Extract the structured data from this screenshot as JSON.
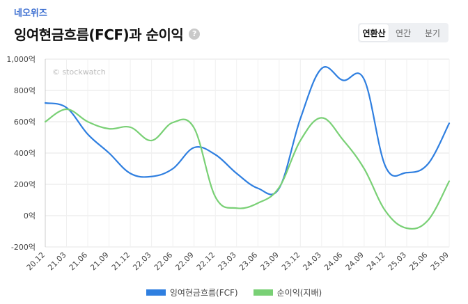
{
  "header": {
    "company": "네오위즈",
    "title": "잉여현금흐름(FCF)과 순이익",
    "help": "?"
  },
  "period_tabs": [
    {
      "label": "연환산",
      "active": true
    },
    {
      "label": "연간",
      "active": false
    },
    {
      "label": "분기",
      "active": false
    }
  ],
  "watermark": "© stockwatch",
  "chart_data": {
    "type": "line",
    "categories": [
      "20.12",
      "21.03",
      "21.06",
      "21.09",
      "21.12",
      "22.03",
      "22.06",
      "22.09",
      "22.12",
      "23.03",
      "23.06",
      "23.09",
      "23.12",
      "24.03",
      "24.06",
      "24.09",
      "24.12",
      "25.03",
      "25.06",
      "25.09"
    ],
    "ylim": [
      -200,
      1000
    ],
    "yticks": [
      -200,
      0,
      200,
      400,
      600,
      800,
      1000
    ],
    "ytick_labels": [
      "-200억",
      "0억",
      "200억",
      "400억",
      "600억",
      "800억",
      "1,000억"
    ],
    "series": [
      {
        "name": "잉여현금흐름(FCF)",
        "color": "#2f7fe0",
        "values": [
          720,
          690,
          520,
          400,
          270,
          250,
          300,
          435,
          390,
          270,
          175,
          175,
          620,
          940,
          865,
          870,
          315,
          275,
          330,
          590
        ]
      },
      {
        "name": "순이익(지배)",
        "color": "#79d075",
        "values": [
          600,
          680,
          600,
          555,
          565,
          480,
          595,
          560,
          120,
          48,
          80,
          180,
          480,
          625,
          485,
          300,
          30,
          -80,
          -30,
          220
        ]
      }
    ]
  }
}
